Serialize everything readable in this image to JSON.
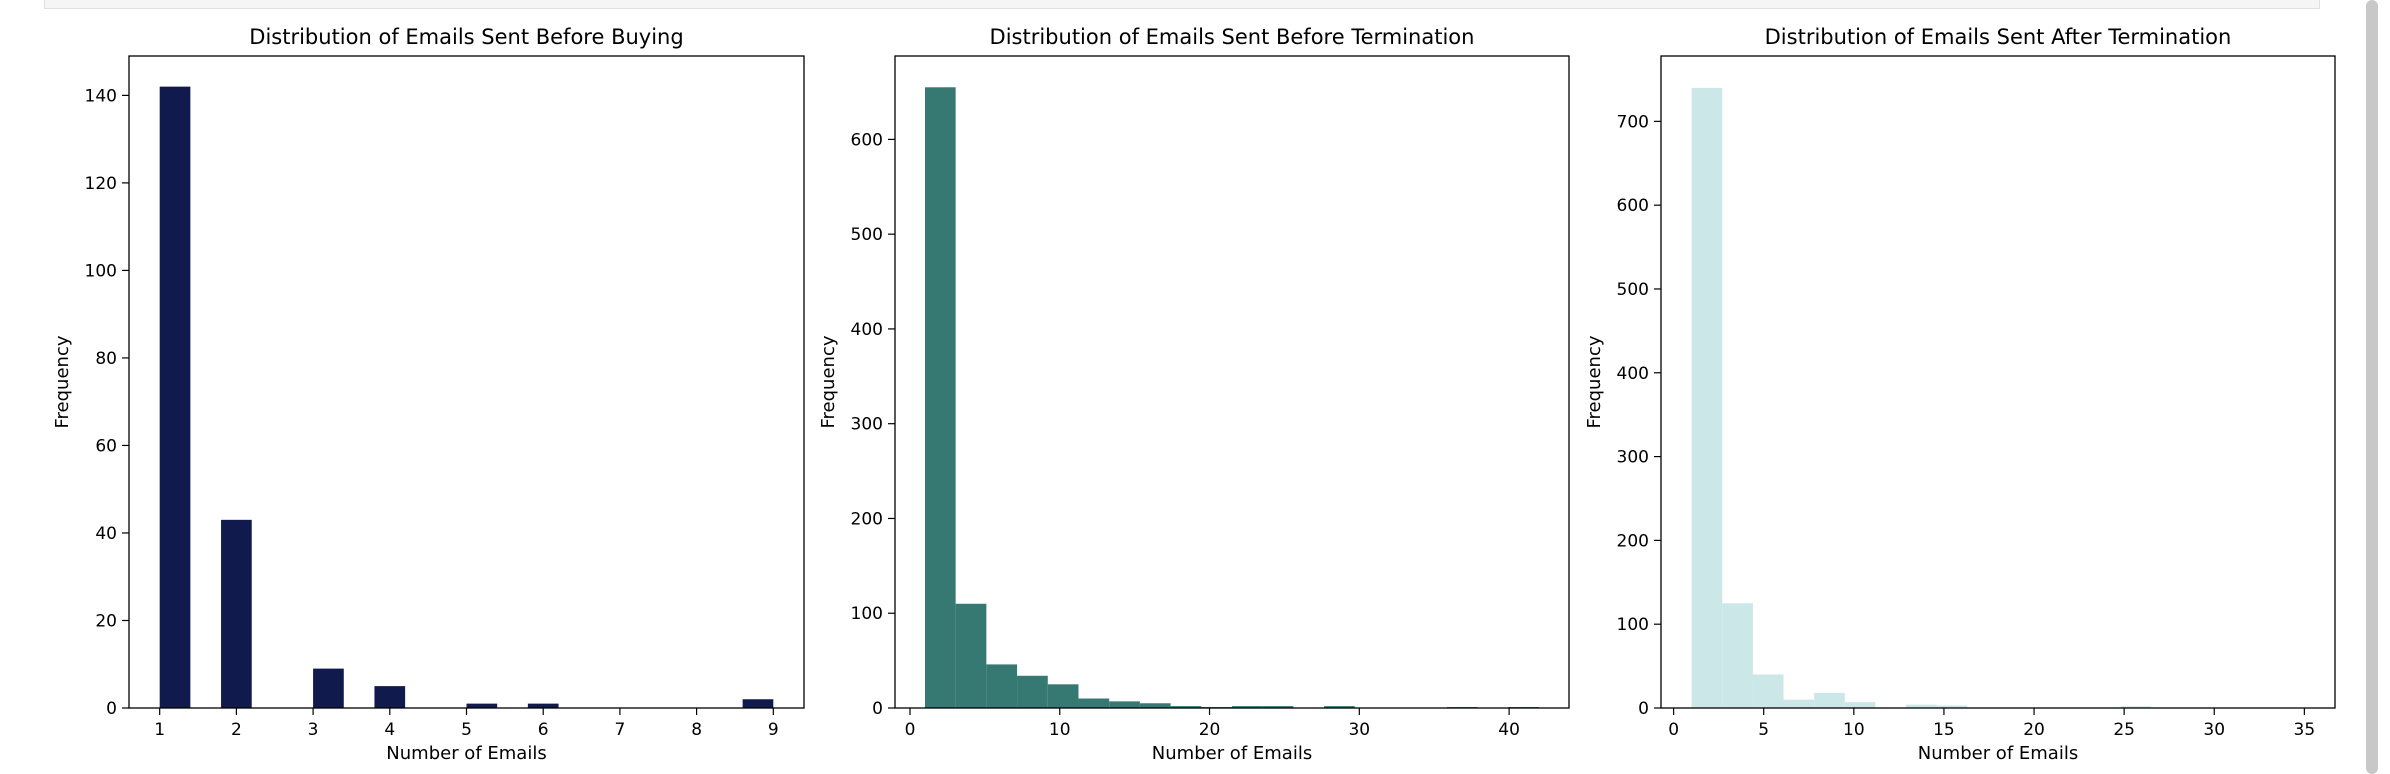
{
  "chart_data": [
    {
      "type": "bar",
      "title": "Distribution of Emails Sent Before Buying",
      "xlabel": "Number of Emails",
      "ylabel": "Frequency",
      "color": "#111a4c",
      "xlim": [
        0.6,
        9.4
      ],
      "ylim": [
        0,
        149
      ],
      "xticks": [
        1,
        2,
        3,
        4,
        5,
        6,
        7,
        8,
        9
      ],
      "yticks": [
        0,
        20,
        40,
        60,
        80,
        100,
        120,
        140
      ],
      "bins": [
        {
          "x0": 1.0,
          "x1": 1.4,
          "value": 142
        },
        {
          "x0": 1.8,
          "x1": 2.2,
          "value": 43
        },
        {
          "x0": 3.0,
          "x1": 3.4,
          "value": 9
        },
        {
          "x0": 3.8,
          "x1": 4.2,
          "value": 5
        },
        {
          "x0": 5.0,
          "x1": 5.4,
          "value": 1
        },
        {
          "x0": 5.8,
          "x1": 6.2,
          "value": 1
        },
        {
          "x0": 8.6,
          "x1": 9.0,
          "value": 2
        }
      ]
    },
    {
      "type": "bar",
      "title": "Distribution of Emails Sent Before Termination",
      "xlabel": "Number of Emails",
      "ylabel": "Frequency",
      "color": "#367972",
      "xlim": [
        -1.0,
        44.0
      ],
      "ylim": [
        0,
        688
      ],
      "xticks": [
        0,
        10,
        20,
        30,
        40
      ],
      "yticks": [
        0,
        100,
        200,
        300,
        400,
        500,
        600
      ],
      "bins": [
        {
          "x0": 1.0,
          "x1": 3.05,
          "value": 655
        },
        {
          "x0": 3.05,
          "x1": 5.1,
          "value": 110
        },
        {
          "x0": 5.1,
          "x1": 7.15,
          "value": 46
        },
        {
          "x0": 7.15,
          "x1": 9.2,
          "value": 34
        },
        {
          "x0": 9.2,
          "x1": 11.25,
          "value": 25
        },
        {
          "x0": 11.25,
          "x1": 13.3,
          "value": 10
        },
        {
          "x0": 13.3,
          "x1": 15.35,
          "value": 7
        },
        {
          "x0": 15.35,
          "x1": 17.4,
          "value": 5
        },
        {
          "x0": 17.4,
          "x1": 19.45,
          "value": 2
        },
        {
          "x0": 19.45,
          "x1": 21.5,
          "value": 1
        },
        {
          "x0": 21.5,
          "x1": 23.55,
          "value": 2
        },
        {
          "x0": 23.55,
          "x1": 25.6,
          "value": 2
        },
        {
          "x0": 27.65,
          "x1": 29.7,
          "value": 2
        },
        {
          "x0": 35.85,
          "x1": 37.9,
          "value": 1
        },
        {
          "x0": 39.95,
          "x1": 42.0,
          "value": 1
        }
      ]
    },
    {
      "type": "bar",
      "title": "Distribution of Emails Sent After Termination",
      "xlabel": "Number of Emails",
      "ylabel": "Frequency",
      "color": "#cce7e7",
      "xlim": [
        -0.7,
        36.7
      ],
      "ylim": [
        0,
        778
      ],
      "xticks": [
        0,
        5,
        10,
        15,
        20,
        25,
        30,
        35
      ],
      "yticks": [
        0,
        100,
        200,
        300,
        400,
        500,
        600,
        700
      ],
      "bins": [
        {
          "x0": 1.0,
          "x1": 2.7,
          "value": 740
        },
        {
          "x0": 2.7,
          "x1": 4.4,
          "value": 125
        },
        {
          "x0": 4.4,
          "x1": 6.1,
          "value": 40
        },
        {
          "x0": 6.1,
          "x1": 7.8,
          "value": 10
        },
        {
          "x0": 7.8,
          "x1": 9.5,
          "value": 18
        },
        {
          "x0": 9.5,
          "x1": 11.2,
          "value": 7
        },
        {
          "x0": 12.9,
          "x1": 14.6,
          "value": 4
        },
        {
          "x0": 14.6,
          "x1": 16.3,
          "value": 3
        },
        {
          "x0": 24.8,
          "x1": 26.5,
          "value": 2
        }
      ]
    }
  ]
}
